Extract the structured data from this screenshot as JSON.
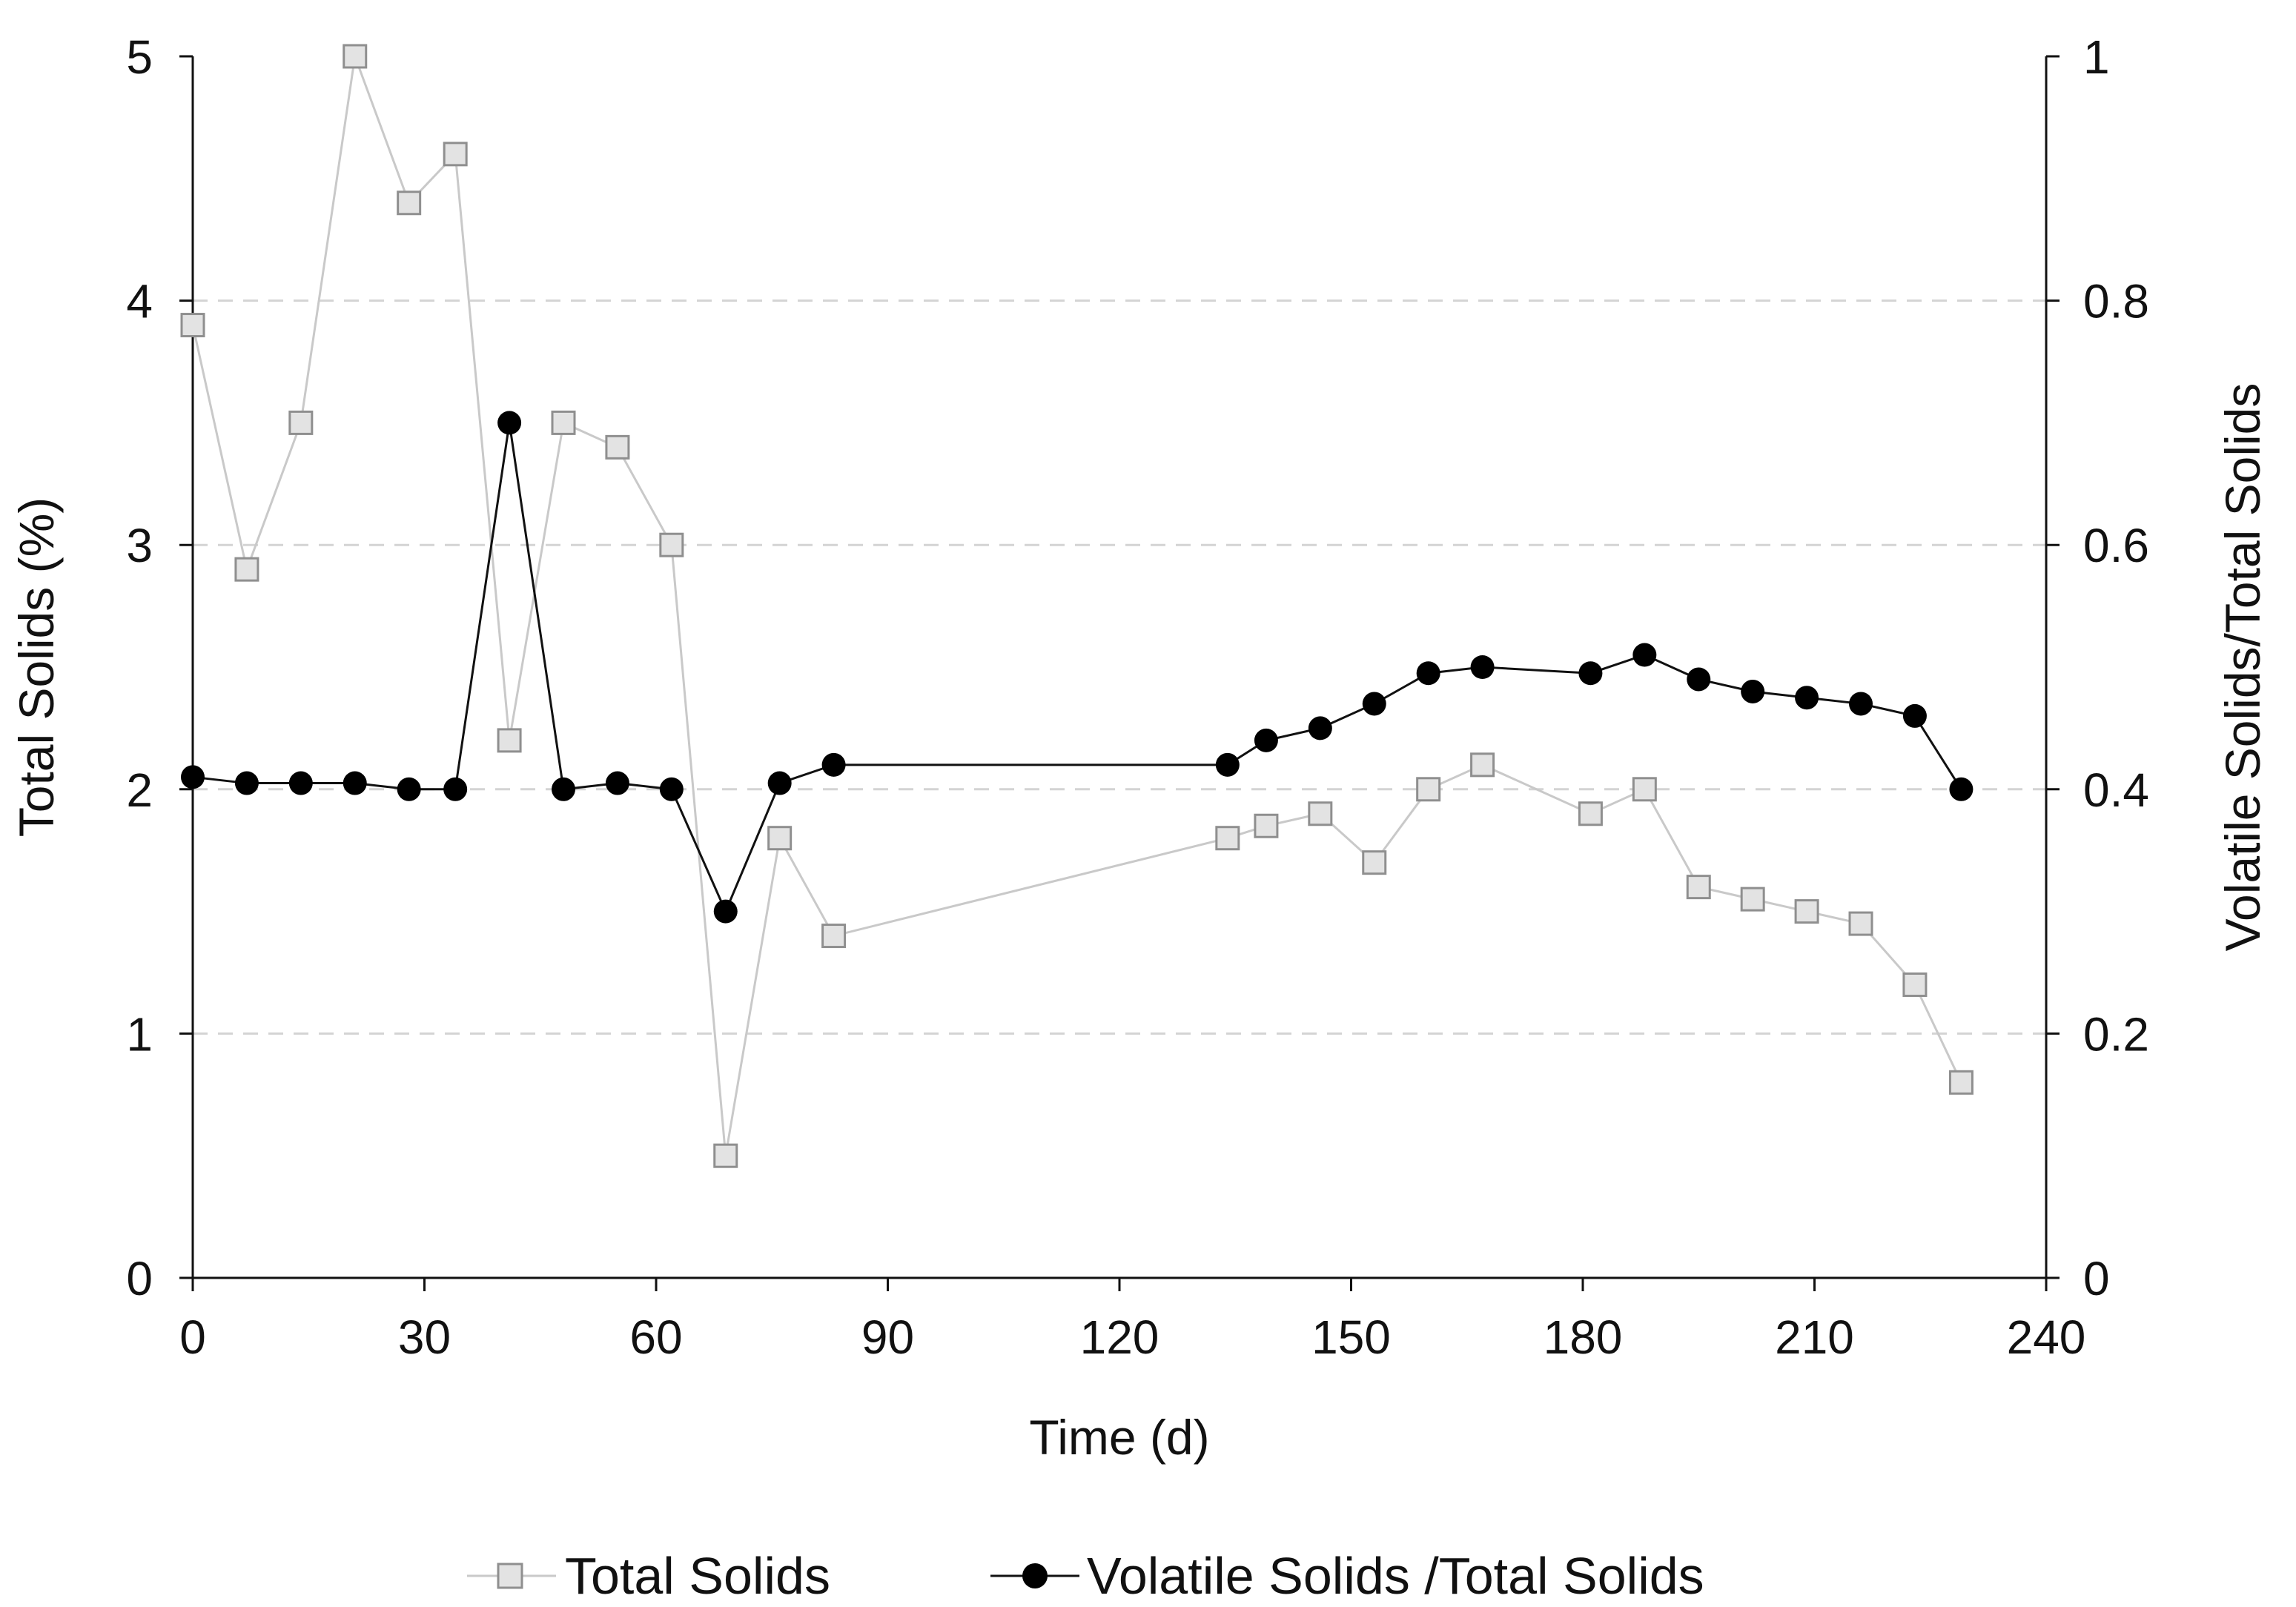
{
  "chart_data": {
    "type": "line",
    "title": "",
    "xlabel": "Time (d)",
    "ylabel": "Total Solids (%)",
    "y2label": "Volatile Solids/Total Solids",
    "xlim": [
      0,
      240
    ],
    "ylim": [
      0,
      5
    ],
    "y2lim": [
      0,
      1
    ],
    "xticks": [
      0,
      30,
      60,
      90,
      120,
      150,
      180,
      210,
      240
    ],
    "yticks": [
      0,
      1,
      2,
      3,
      4,
      5
    ],
    "y2ticks": [
      "0",
      "0.2",
      "0.4",
      "0.6",
      "0.8",
      "1"
    ],
    "grid": "horizontal dashed at y = 1, 2, 3, 4",
    "legend_position": "bottom-center",
    "series": [
      {
        "name": "Total Solids",
        "axis": "left",
        "color": "#c9c9c9",
        "marker": "square",
        "x": [
          0,
          7,
          14,
          21,
          28,
          34,
          41,
          48,
          55,
          62,
          69,
          76,
          83,
          134,
          139,
          146,
          153,
          160,
          167,
          181,
          188,
          195,
          202,
          209,
          216,
          223,
          229
        ],
        "y": [
          3.9,
          2.9,
          3.5,
          5.0,
          4.4,
          4.6,
          2.2,
          3.5,
          3.4,
          3.0,
          0.5,
          1.8,
          1.4,
          1.8,
          1.85,
          1.9,
          1.7,
          2.0,
          2.1,
          1.9,
          2.0,
          1.6,
          1.55,
          1.5,
          1.45,
          1.2,
          0.8
        ]
      },
      {
        "name": "Volatile Solids /Total Solids",
        "axis": "right",
        "color": "#111111",
        "marker": "circle",
        "x": [
          0,
          7,
          14,
          21,
          28,
          34,
          41,
          48,
          55,
          62,
          69,
          76,
          83,
          134,
          139,
          146,
          153,
          160,
          167,
          181,
          188,
          195,
          202,
          209,
          216,
          223,
          229
        ],
        "y": [
          0.41,
          0.405,
          0.405,
          0.405,
          0.4,
          0.4,
          0.7,
          0.4,
          0.405,
          0.4,
          0.3,
          0.405,
          0.42,
          0.42,
          0.44,
          0.45,
          0.47,
          0.495,
          0.5,
          0.495,
          0.51,
          0.49,
          0.48,
          0.475,
          0.47,
          0.46,
          0.4
        ]
      }
    ]
  }
}
